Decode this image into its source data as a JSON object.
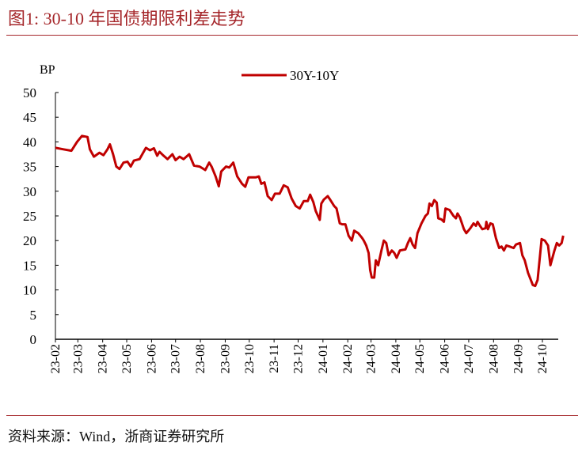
{
  "header": {
    "title": "图1:   30-10 年国债期限利差走势"
  },
  "footer": {
    "source": "资料来源：Wind，浙商证券研究所"
  },
  "colors": {
    "accent": "#a5262a",
    "series": "#c00000"
  },
  "chart_data": {
    "type": "line",
    "title": "",
    "ylabel": "BP",
    "xlabel": "",
    "ylim": [
      0,
      50
    ],
    "yticks": [
      "0",
      "5",
      "10",
      "15",
      "20",
      "25",
      "30",
      "35",
      "40",
      "45",
      "50"
    ],
    "xticks": [
      {
        "label": "23-02",
        "date": "2023-02-01"
      },
      {
        "label": "23-03",
        "date": "2023-03-01"
      },
      {
        "label": "23-04",
        "date": "2023-04-01"
      },
      {
        "label": "23-05",
        "date": "2023-05-01"
      },
      {
        "label": "23-06",
        "date": "2023-06-01"
      },
      {
        "label": "23-07",
        "date": "2023-07-01"
      },
      {
        "label": "23-08",
        "date": "2023-08-01"
      },
      {
        "label": "23-09",
        "date": "2023-09-01"
      },
      {
        "label": "23-10",
        "date": "2023-10-01"
      },
      {
        "label": "23-11",
        "date": "2023-11-01"
      },
      {
        "label": "23-12",
        "date": "2023-12-01"
      },
      {
        "label": "24-01",
        "date": "2024-01-01"
      },
      {
        "label": "24-02",
        "date": "2024-02-01"
      },
      {
        "label": "24-03",
        "date": "2024-03-01"
      },
      {
        "label": "24-04",
        "date": "2024-04-01"
      },
      {
        "label": "24-05",
        "date": "2024-05-01"
      },
      {
        "label": "24-06",
        "date": "2024-06-01"
      },
      {
        "label": "24-07",
        "date": "2024-07-01"
      },
      {
        "label": "24-08",
        "date": "2024-08-01"
      },
      {
        "label": "24-09",
        "date": "2024-09-01"
      },
      {
        "label": "24-10",
        "date": "2024-10-01"
      }
    ],
    "grid": false,
    "legend": "top-center",
    "series": [
      {
        "name": "30Y-10Y",
        "points": [
          [
            "2023-02-01",
            38.8
          ],
          [
            "2023-02-11",
            38.5
          ],
          [
            "2023-02-21",
            38.2
          ],
          [
            "2023-02-28",
            40
          ],
          [
            "2023-03-06",
            41.2
          ],
          [
            "2023-03-13",
            41
          ],
          [
            "2023-03-16",
            38.5
          ],
          [
            "2023-03-21",
            37
          ],
          [
            "2023-03-28",
            37.8
          ],
          [
            "2023-04-02",
            37.3
          ],
          [
            "2023-04-07",
            38.5
          ],
          [
            "2023-04-10",
            39.5
          ],
          [
            "2023-04-14",
            37.5
          ],
          [
            "2023-04-18",
            35
          ],
          [
            "2023-04-22",
            34.5
          ],
          [
            "2023-04-27",
            35.8
          ],
          [
            "2023-05-02",
            36
          ],
          [
            "2023-05-06",
            35
          ],
          [
            "2023-05-10",
            36.2
          ],
          [
            "2023-05-17",
            36.5
          ],
          [
            "2023-05-25",
            38.8
          ],
          [
            "2023-05-30",
            38.3
          ],
          [
            "2023-06-04",
            38.7
          ],
          [
            "2023-06-08",
            37.2
          ],
          [
            "2023-06-11",
            38
          ],
          [
            "2023-06-16",
            37.2
          ],
          [
            "2023-06-21",
            36.5
          ],
          [
            "2023-06-27",
            37.5
          ],
          [
            "2023-07-01",
            36.3
          ],
          [
            "2023-07-06",
            37
          ],
          [
            "2023-07-11",
            36.5
          ],
          [
            "2023-07-18",
            37.5
          ],
          [
            "2023-07-24",
            35.2
          ],
          [
            "2023-07-31",
            35
          ],
          [
            "2023-08-07",
            34.3
          ],
          [
            "2023-08-12",
            35.8
          ],
          [
            "2023-08-15",
            35
          ],
          [
            "2023-08-20",
            33
          ],
          [
            "2023-08-24",
            31
          ],
          [
            "2023-08-27",
            34
          ],
          [
            "2023-09-02",
            35
          ],
          [
            "2023-09-06",
            34.8
          ],
          [
            "2023-09-11",
            35.8
          ],
          [
            "2023-09-16",
            33
          ],
          [
            "2023-09-22",
            31.5
          ],
          [
            "2023-09-26",
            30.9
          ],
          [
            "2023-09-30",
            32.8
          ],
          [
            "2023-10-09",
            32.8
          ],
          [
            "2023-10-13",
            33
          ],
          [
            "2023-10-16",
            31.5
          ],
          [
            "2023-10-20",
            31.8
          ],
          [
            "2023-10-24",
            29
          ],
          [
            "2023-10-29",
            28.2
          ],
          [
            "2023-11-02",
            29.5
          ],
          [
            "2023-11-08",
            29.5
          ],
          [
            "2023-11-13",
            31.2
          ],
          [
            "2023-11-18",
            30.8
          ],
          [
            "2023-11-23",
            28.5
          ],
          [
            "2023-11-28",
            27
          ],
          [
            "2023-12-03",
            26.5
          ],
          [
            "2023-12-08",
            28
          ],
          [
            "2023-12-13",
            28
          ],
          [
            "2023-12-16",
            29.3
          ],
          [
            "2023-12-20",
            27.8
          ],
          [
            "2023-12-23",
            26
          ],
          [
            "2023-12-28",
            24.2
          ],
          [
            "2023-12-30",
            27.5
          ],
          [
            "2024-01-02",
            28.3
          ],
          [
            "2024-01-07",
            29
          ],
          [
            "2024-01-10",
            28.3
          ],
          [
            "2024-01-15",
            27
          ],
          [
            "2024-01-18",
            26.5
          ],
          [
            "2024-01-22",
            23.5
          ],
          [
            "2024-01-25",
            23.3
          ],
          [
            "2024-01-29",
            23.3
          ],
          [
            "2024-02-02",
            21
          ],
          [
            "2024-02-06",
            20
          ],
          [
            "2024-02-09",
            22
          ],
          [
            "2024-02-14",
            21.5
          ],
          [
            "2024-02-19",
            20.5
          ],
          [
            "2024-02-21",
            20
          ],
          [
            "2024-02-24",
            19
          ],
          [
            "2024-02-27",
            17.5
          ],
          [
            "2024-02-29",
            14
          ],
          [
            "2024-03-02",
            12.5
          ],
          [
            "2024-03-05",
            12.5
          ],
          [
            "2024-03-07",
            16
          ],
          [
            "2024-03-10",
            15
          ],
          [
            "2024-03-14",
            18
          ],
          [
            "2024-03-17",
            20
          ],
          [
            "2024-03-20",
            19.5
          ],
          [
            "2024-03-23",
            17
          ],
          [
            "2024-03-27",
            18
          ],
          [
            "2024-03-30",
            17.5
          ],
          [
            "2024-04-02",
            16.5
          ],
          [
            "2024-04-06",
            18
          ],
          [
            "2024-04-13",
            18.2
          ],
          [
            "2024-04-16",
            19.5
          ],
          [
            "2024-04-19",
            20.5
          ],
          [
            "2024-04-22",
            19.2
          ],
          [
            "2024-04-25",
            18.5
          ],
          [
            "2024-04-28",
            21.5
          ],
          [
            "2024-05-03",
            23.5
          ],
          [
            "2024-05-08",
            25
          ],
          [
            "2024-05-11",
            25.5
          ],
          [
            "2024-05-13",
            27.5
          ],
          [
            "2024-05-16",
            27
          ],
          [
            "2024-05-19",
            28.2
          ],
          [
            "2024-05-22",
            27.7
          ],
          [
            "2024-05-24",
            24.5
          ],
          [
            "2024-05-28",
            24.3
          ],
          [
            "2024-05-31",
            23.8
          ],
          [
            "2024-06-02",
            26.5
          ],
          [
            "2024-06-07",
            26.2
          ],
          [
            "2024-06-12",
            25
          ],
          [
            "2024-06-15",
            24.5
          ],
          [
            "2024-06-17",
            25.5
          ],
          [
            "2024-06-20",
            24.7
          ],
          [
            "2024-06-25",
            22.3
          ],
          [
            "2024-06-28",
            21.5
          ],
          [
            "2024-07-03",
            22.5
          ],
          [
            "2024-07-07",
            23.5
          ],
          [
            "2024-07-10",
            23
          ],
          [
            "2024-07-12",
            23.8
          ],
          [
            "2024-07-15",
            23
          ],
          [
            "2024-07-18",
            22.3
          ],
          [
            "2024-07-22",
            22.5
          ],
          [
            "2024-07-23",
            23.8
          ],
          [
            "2024-07-25",
            22.3
          ],
          [
            "2024-07-28",
            23.5
          ],
          [
            "2024-07-31",
            23.3
          ],
          [
            "2024-08-04",
            20.5
          ],
          [
            "2024-08-08",
            18.5
          ],
          [
            "2024-08-11",
            18.8
          ],
          [
            "2024-08-14",
            18
          ],
          [
            "2024-08-17",
            19
          ],
          [
            "2024-08-21",
            18.8
          ],
          [
            "2024-08-26",
            18.5
          ],
          [
            "2024-08-29",
            19.2
          ],
          [
            "2024-09-03",
            19.5
          ],
          [
            "2024-09-06",
            17
          ],
          [
            "2024-09-09",
            16
          ],
          [
            "2024-09-13",
            13.5
          ],
          [
            "2024-09-19",
            11
          ],
          [
            "2024-09-22",
            10.8
          ],
          [
            "2024-09-25",
            12
          ],
          [
            "2024-09-28",
            17
          ],
          [
            "2024-09-30",
            20.3
          ],
          [
            "2024-10-04",
            20
          ],
          [
            "2024-10-08",
            19
          ],
          [
            "2024-10-11",
            15
          ],
          [
            "2024-10-16",
            18
          ],
          [
            "2024-10-19",
            19.5
          ],
          [
            "2024-10-22",
            19
          ],
          [
            "2024-10-25",
            19.5
          ],
          [
            "2024-10-27",
            21
          ]
        ]
      }
    ]
  }
}
